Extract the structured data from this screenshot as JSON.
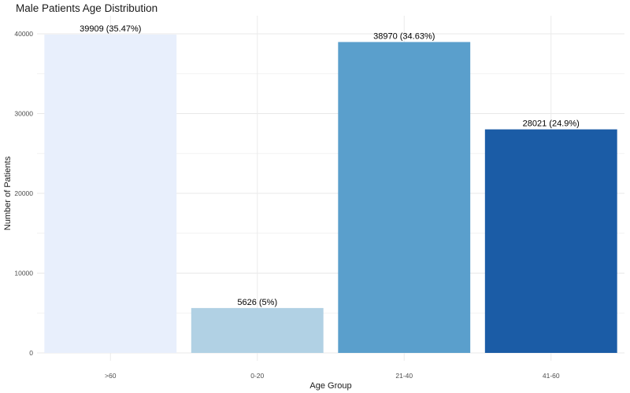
{
  "chart_data": {
    "type": "bar",
    "title": "Male Patients Age Distribution",
    "xlabel": "Age Group",
    "ylabel": "Number of Patients",
    "categories": [
      ">60",
      "0-20",
      "21-40",
      "41-60"
    ],
    "values": [
      39909,
      5626,
      38970,
      28021
    ],
    "data_labels": [
      "39909 (35.47%)",
      "5626 (5%)",
      "38970 (34.63%)",
      "28021 (24.9%)"
    ],
    "colors": [
      "#e8effc",
      "#b1d1e4",
      "#5a9fcc",
      "#1b5ca6"
    ],
    "ylim": [
      0,
      40000
    ],
    "yticks": [
      0,
      10000,
      20000,
      30000,
      40000
    ],
    "ytick_labels": [
      "0",
      "10000",
      "20000",
      "30000",
      "40000"
    ],
    "grid": true,
    "legend": "none"
  }
}
